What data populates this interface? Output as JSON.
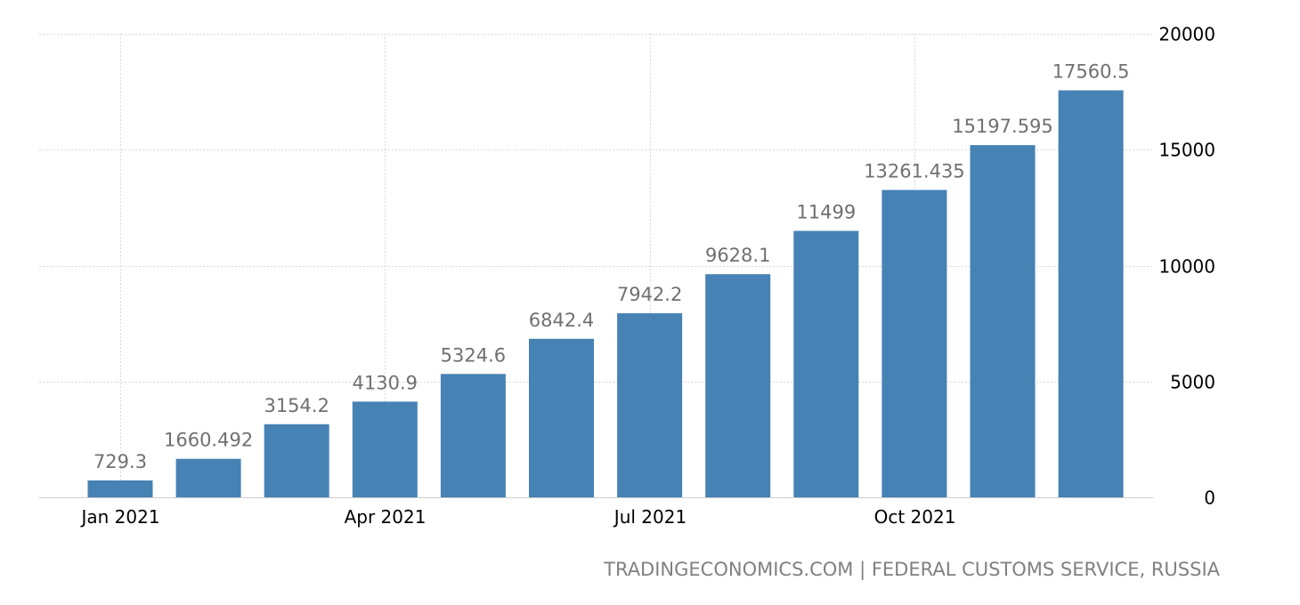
{
  "source_label": "TRADINGECONOMICS.COM | FEDERAL CUSTOMS SERVICE, RUSSIA",
  "colors": {
    "bar": "#4682b4",
    "data_label": "#707070",
    "grid": "#d9d9d9"
  },
  "chart_data": {
    "type": "bar",
    "title": "",
    "xlabel": "",
    "ylabel": "",
    "categories": [
      "2021-01",
      "2021-02",
      "2021-03",
      "2021-04",
      "2021-05",
      "2021-06",
      "2021-07",
      "2021-08",
      "2021-09",
      "2021-10",
      "2021-11",
      "2021-12"
    ],
    "values": [
      729.3,
      1660.492,
      3154.2,
      4130.9,
      5324.6,
      6842.4,
      7942.2,
      9628.1,
      11499,
      13261.435,
      15197.595,
      17560.5
    ],
    "value_labels": [
      "729.3",
      "1660.492",
      "3154.2",
      "4130.9",
      "5324.6",
      "6842.4",
      "7942.2",
      "9628.1",
      "11499",
      "13261.435",
      "15197.595",
      "17560.5"
    ],
    "x_tick_labels": [
      {
        "category": "2021-01",
        "label": "Jan 2021"
      },
      {
        "category": "2021-04",
        "label": "Apr 2021"
      },
      {
        "category": "2021-07",
        "label": "Jul 2021"
      },
      {
        "category": "2021-10",
        "label": "Oct 2021"
      }
    ],
    "y_ticks": [
      0,
      5000,
      10000,
      15000,
      20000
    ],
    "ylim": [
      0,
      20000
    ],
    "y_axis_side": "right",
    "grid": true,
    "legend": "none"
  }
}
